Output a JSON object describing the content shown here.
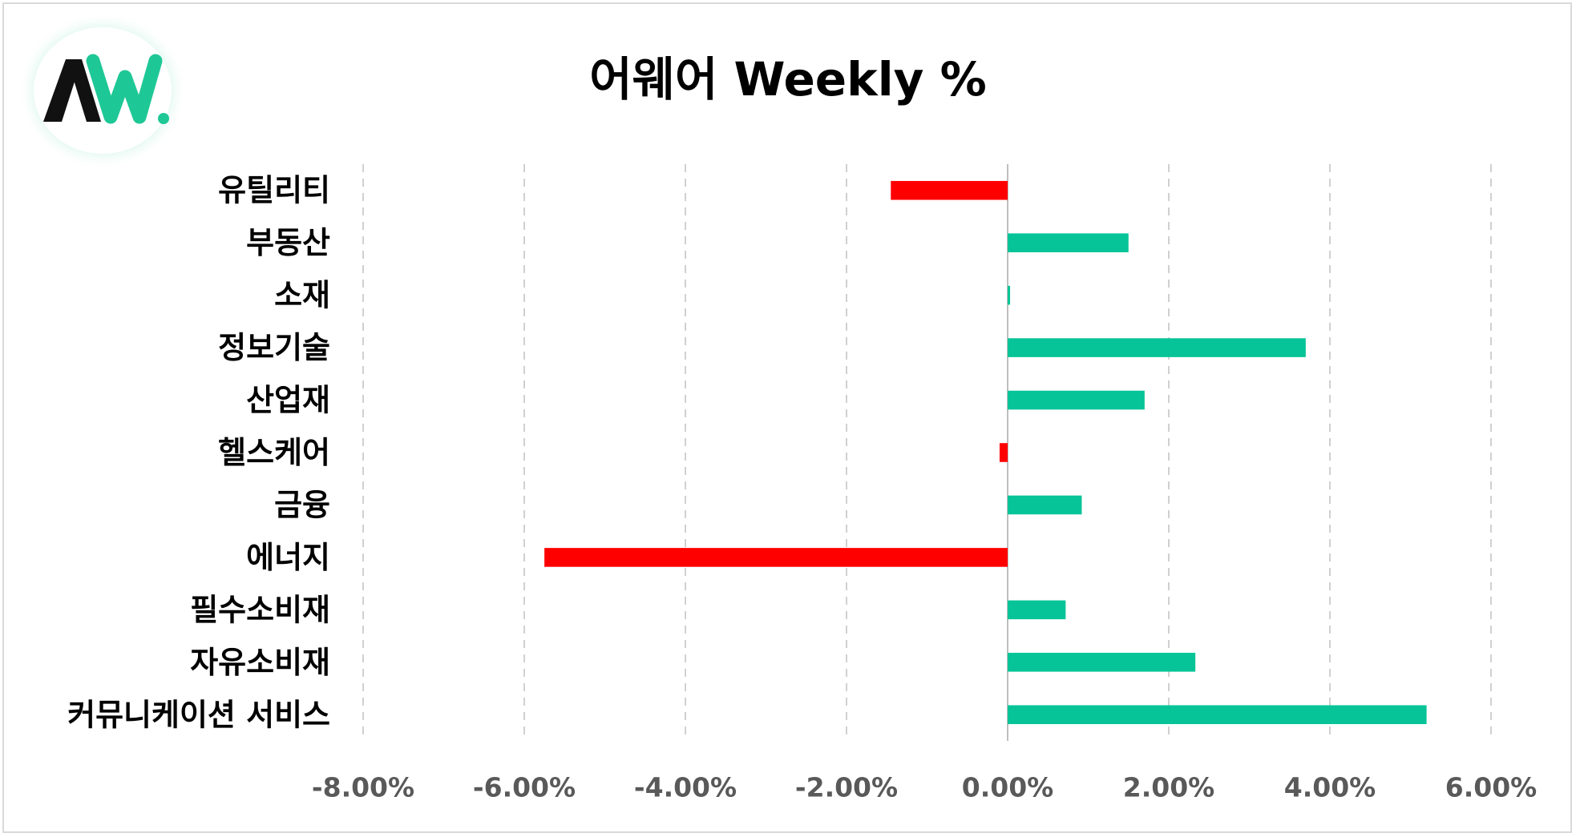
{
  "logo": {
    "icon": "aw-logo-icon",
    "colors": {
      "dark": "#111111",
      "accent": "#1ec896"
    }
  },
  "colors": {
    "positive": "#06c497",
    "negative": "#ff0000",
    "grid": "#d0d0d0",
    "axis": "#bfbfbf"
  },
  "chart_data": {
    "type": "bar",
    "orientation": "horizontal",
    "title": "어웨어 Weekly %",
    "xlabel": "",
    "ylabel": "",
    "xlim": [
      -8,
      6
    ],
    "ticks": [
      -8,
      -6,
      -4,
      -2,
      0,
      2,
      4,
      6
    ],
    "tick_labels": [
      "-8.00%",
      "-6.00%",
      "-4.00%",
      "-2.00%",
      "0.00%",
      "2.00%",
      "4.00%",
      "6.00%"
    ],
    "grid": true,
    "legend": "none",
    "categories": [
      "유틸리티",
      "부동산",
      "소재",
      "정보기술",
      "산업재",
      "헬스케어",
      "금융",
      "에너지",
      "필수소비재",
      "자유소비재",
      "커뮤니케이션 서비스"
    ],
    "values": [
      -1.45,
      1.5,
      0.03,
      3.7,
      1.7,
      -0.1,
      0.92,
      -5.75,
      0.72,
      2.33,
      5.2
    ],
    "unit": "%"
  }
}
